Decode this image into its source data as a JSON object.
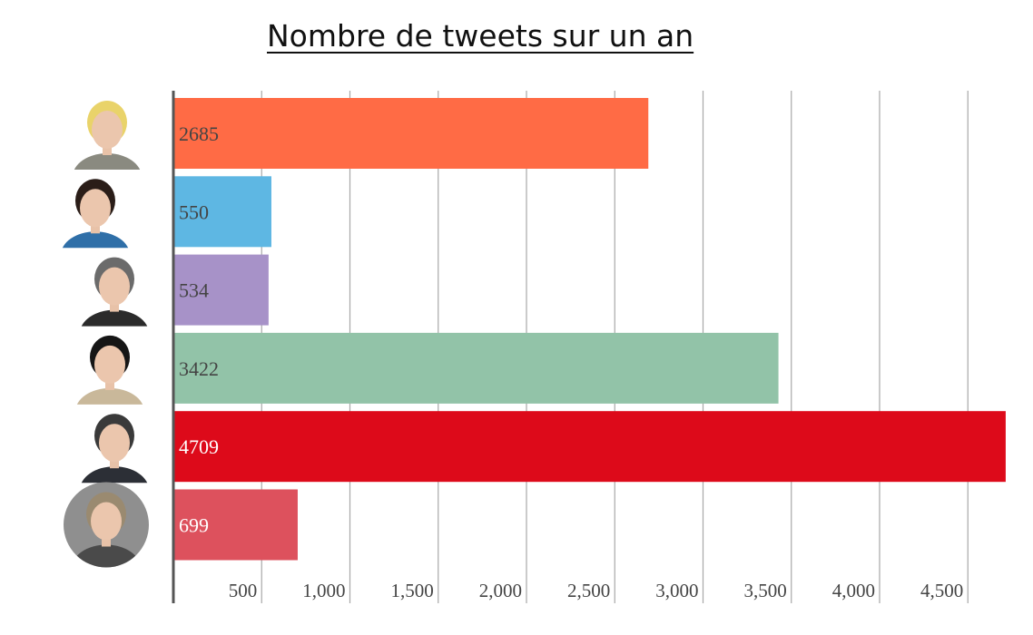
{
  "chart_data": {
    "type": "bar",
    "orientation": "horizontal",
    "title": "Nombre de tweets sur un an",
    "xlabel": "",
    "ylabel": "",
    "xlim": [
      0,
      4700
    ],
    "xticks": [
      500,
      1000,
      1500,
      2000,
      2500,
      3000,
      3500,
      4000,
      4500
    ],
    "xtick_labels": [
      "500",
      "1,000",
      "1,500",
      "2,000",
      "2,500",
      "3,000",
      "3,500",
      "4,000",
      "4,500"
    ],
    "grid": true,
    "legend": "none",
    "bars": [
      {
        "value": 2685,
        "label": "2685",
        "color": "#FF6B45",
        "label_color": "#444444"
      },
      {
        "value": 550,
        "label": "550",
        "color": "#5EB7E3",
        "label_color": "#444444"
      },
      {
        "value": 534,
        "label": "534",
        "color": "#A792C8",
        "label_color": "#444444"
      },
      {
        "value": 3422,
        "label": "3422",
        "color": "#92C3A8",
        "label_color": "#444444"
      },
      {
        "value": 4709,
        "label": "4709",
        "color": "#DD0A1A",
        "label_color": "#ffffff"
      },
      {
        "value": 699,
        "label": "699",
        "color": "#DD515D",
        "label_color": "#ffffff"
      }
    ]
  },
  "portraits": [
    {
      "icon": "portrait-woman-blonde-icon",
      "hair": "#E9D36A",
      "clothes": "#8A8A80",
      "shape": "square"
    },
    {
      "icon": "portrait-woman-brunette-icon",
      "hair": "#2A1D18",
      "clothes": "#2F6FA8",
      "shape": "square"
    },
    {
      "icon": "portrait-man-suit-icon",
      "hair": "#6B6B6B",
      "clothes": "#2B2B2B",
      "shape": "square"
    },
    {
      "icon": "portrait-woman-darkhair-icon",
      "hair": "#151515",
      "clothes": "#C9B89A",
      "shape": "square"
    },
    {
      "icon": "portrait-man-bald-icon",
      "hair": "#3A3A3A",
      "clothes": "#2C2F36",
      "shape": "square"
    },
    {
      "icon": "portrait-man-round-icon",
      "hair": "#9A8A70",
      "clothes": "#4A4A4A",
      "shape": "circle"
    }
  ]
}
